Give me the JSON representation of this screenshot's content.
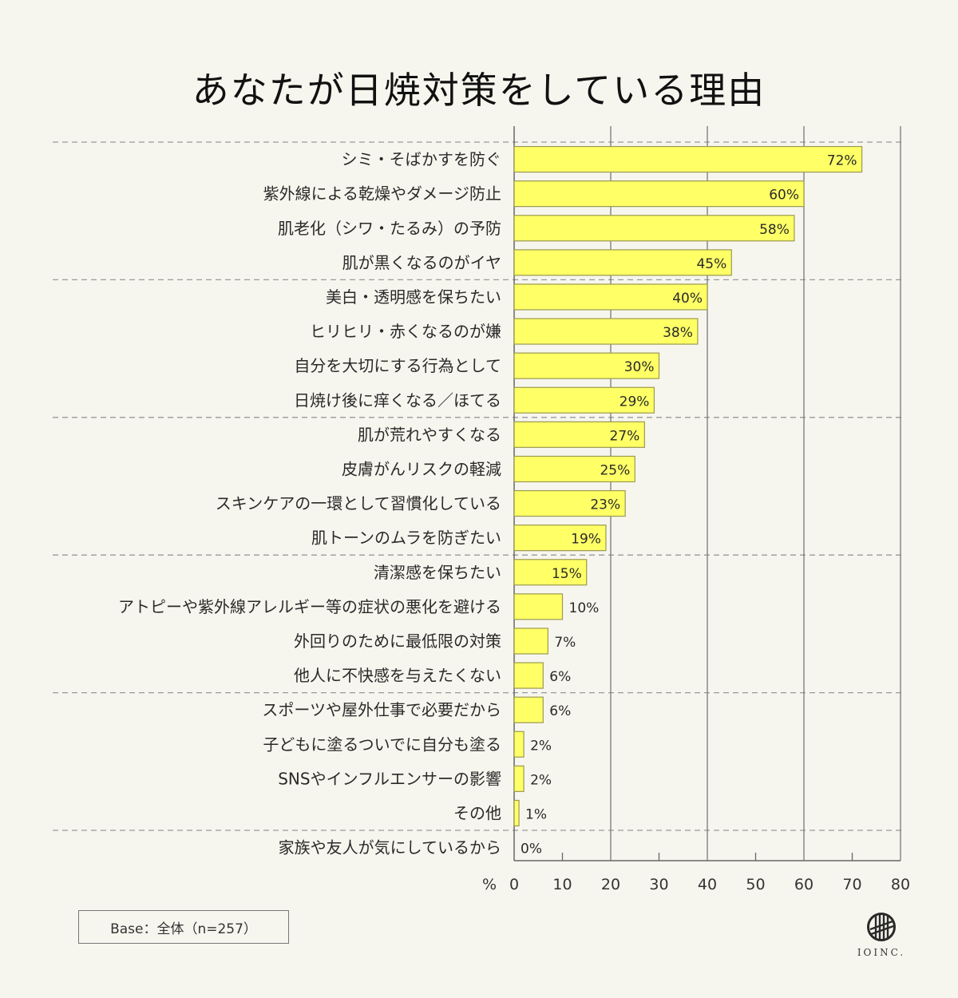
{
  "chart_data": {
    "type": "bar",
    "orientation": "horizontal",
    "title": "あなたが日焼対策をしている理由",
    "xlabel": "%",
    "ylabel": "",
    "xlim": [
      0,
      80
    ],
    "xticks": [
      0,
      10,
      20,
      30,
      40,
      50,
      60,
      70,
      80
    ],
    "major_gridlines": [
      20,
      40,
      60,
      80
    ],
    "value_suffix": "%",
    "bar_color": "#ffff66",
    "bar_border_color": "#9a9a50",
    "categories": [
      "シミ・そばかすを防ぐ",
      "紫外線による乾燥やダメージ防止",
      "肌老化（シワ・たるみ）の予防",
      "肌が黒くなるのがイヤ",
      "美白・透明感を保ちたい",
      "ヒリヒリ・赤くなるのが嫌",
      "自分を大切にする行為として",
      "日焼け後に痒くなる／ほてる",
      "肌が荒れやすくなる",
      "皮膚がんリスクの軽減",
      "スキンケアの一環として習慣化している",
      "肌トーンのムラを防ぎたい",
      "清潔感を保ちたい",
      "アトピーや紫外線アレルギー等の症状の悪化を避ける",
      "外回りのために最低限の対策",
      "他人に不快感を与えたくない",
      "スポーツや屋外仕事で必要だから",
      "子どもに塗るついでに自分も塗る",
      "SNSやインフルエンサーの影響",
      "その他",
      "家族や友人が気にしているから"
    ],
    "values": [
      72,
      60,
      58,
      45,
      40,
      38,
      30,
      29,
      27,
      25,
      23,
      19,
      15,
      10,
      7,
      6,
      6,
      2,
      2,
      1,
      0
    ],
    "group_separators_after_index": [
      -1,
      3,
      7,
      11,
      15,
      19
    ]
  },
  "footer": {
    "base_label": "Base：全体（n=257）",
    "logo_text": "IOINC."
  }
}
